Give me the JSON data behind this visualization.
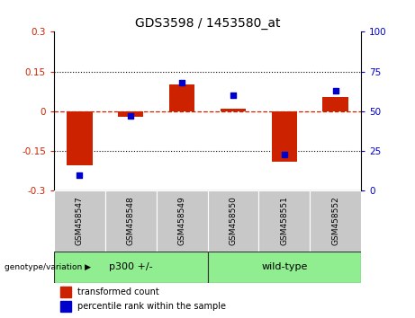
{
  "title": "GDS3598 / 1453580_at",
  "samples": [
    "GSM458547",
    "GSM458548",
    "GSM458549",
    "GSM458550",
    "GSM458551",
    "GSM458552"
  ],
  "transformed_counts": [
    -0.205,
    -0.02,
    0.1,
    0.01,
    -0.19,
    0.055
  ],
  "percentile_ranks": [
    10,
    47,
    68,
    60,
    23,
    63
  ],
  "bar_color": "#CC2200",
  "dot_color": "#0000CC",
  "zero_line_color": "#CC2200",
  "ylim_left": [
    -0.3,
    0.3
  ],
  "ylim_right": [
    0,
    100
  ],
  "yticks_left": [
    -0.3,
    -0.15,
    0,
    0.15,
    0.3
  ],
  "yticks_right": [
    0,
    25,
    50,
    75,
    100
  ],
  "hline_values": [
    -0.15,
    0.15
  ],
  "legend_items": [
    "transformed count",
    "percentile rank within the sample"
  ],
  "genotype_label": "genotype/variation",
  "group_names": [
    "p300 +/-",
    "wild-type"
  ],
  "group_color": "#90EE90",
  "sample_box_color": "#C8C8C8",
  "n_group1": 3,
  "n_group2": 3
}
